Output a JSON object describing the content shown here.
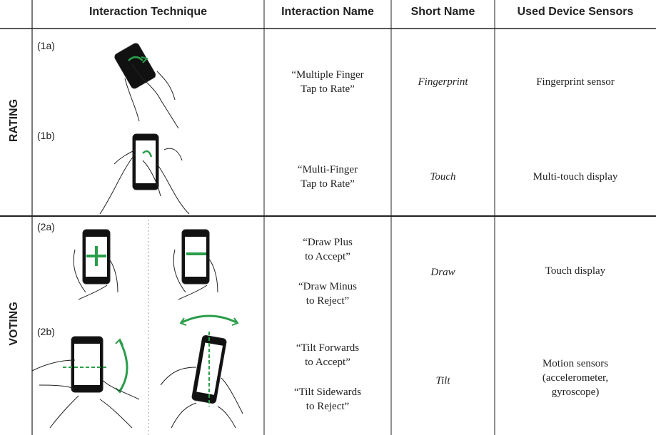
{
  "header": {
    "columns": [
      "Interaction Technique",
      "Interaction Name",
      "Short Name",
      "Used Device Sensors"
    ]
  },
  "sections": [
    {
      "label": "RATING",
      "rows": [
        {
          "id": "(1a)",
          "name_lines": [
            "“Multiple Finger",
            "Tap to Rate”"
          ],
          "short_name": "Fingerprint",
          "sensor_lines": [
            "Fingerprint sensor"
          ]
        },
        {
          "id": "(1b)",
          "name_lines": [
            "“Multi-Finger",
            "Tap to Rate”"
          ],
          "short_name": "Touch",
          "sensor_lines": [
            "Multi-touch display"
          ]
        }
      ]
    },
    {
      "label": "VOTING",
      "rows": [
        {
          "id": "(2a)",
          "names": [
            [
              "“Draw Plus",
              "to Accept”"
            ],
            [
              "“Draw Minus",
              "to Reject”"
            ]
          ],
          "short_name": "Draw",
          "sensor_lines": [
            "Touch display"
          ]
        },
        {
          "id": "(2b)",
          "names": [
            [
              "“Tilt Forwards",
              "to Accept”"
            ],
            [
              "“Tilt Sidewards",
              "to Reject”"
            ]
          ],
          "short_name": "Tilt",
          "sensor_lines": [
            "Motion sensors",
            "(accelerometer,",
            "gyroscope)"
          ]
        }
      ]
    }
  ]
}
